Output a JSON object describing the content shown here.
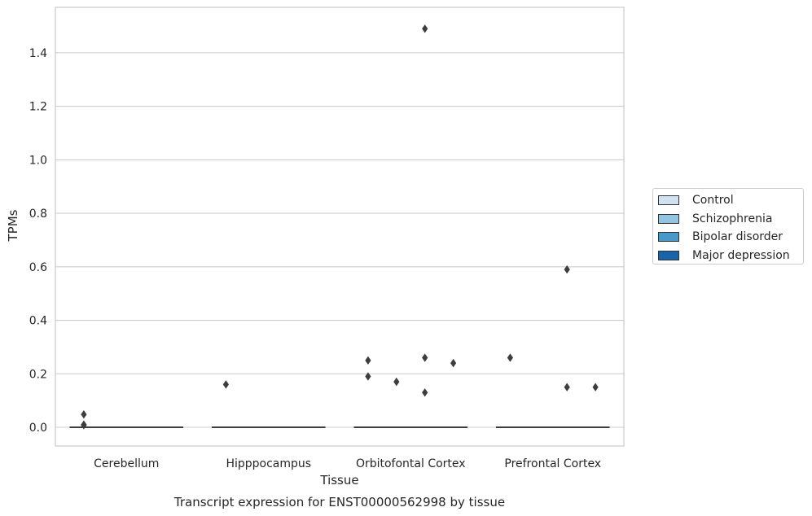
{
  "chart_data": {
    "type": "box",
    "title": "",
    "caption": "Transcript expression for ENST00000562998 by tissue",
    "xlabel": "Tissue",
    "ylabel": "TPMs",
    "ylim": [
      -0.07,
      1.57
    ],
    "yticks": [
      0.0,
      0.2,
      0.4,
      0.6,
      0.8,
      1.0,
      1.2,
      1.4
    ],
    "ytick_labels": [
      "0.0",
      "0.2",
      "0.4",
      "0.6",
      "0.8",
      "1.0",
      "1.2",
      "1.4"
    ],
    "grid": true,
    "legend_position": "right",
    "categories": [
      "Cerebellum",
      "Hipppocampus",
      "Orbitofontal Cortex",
      "Prefrontal Cortex"
    ],
    "series": [
      {
        "name": "Control",
        "color": "#d0e1f2"
      },
      {
        "name": "Schizophrenia",
        "color": "#94c4df"
      },
      {
        "name": "Bipolar disorder",
        "color": "#4a98c9"
      },
      {
        "name": "Major depression",
        "color": "#1764ab"
      }
    ],
    "medians": [
      0.0,
      0.0,
      0.0,
      0.0
    ],
    "outliers": [
      {
        "category": "Cerebellum",
        "series": "Control",
        "y": 0.008
      },
      {
        "category": "Cerebellum",
        "series": "Control",
        "y": 0.01
      },
      {
        "category": "Cerebellum",
        "series": "Control",
        "y": 0.048
      },
      {
        "category": "Hipppocampus",
        "series": "Control",
        "y": 0.16
      },
      {
        "category": "Orbitofontal Cortex",
        "series": "Control",
        "y": 0.25
      },
      {
        "category": "Orbitofontal Cortex",
        "series": "Control",
        "y": 0.19
      },
      {
        "category": "Orbitofontal Cortex",
        "series": "Schizophrenia",
        "y": 0.17
      },
      {
        "category": "Orbitofontal Cortex",
        "series": "Bipolar disorder",
        "y": 1.49
      },
      {
        "category": "Orbitofontal Cortex",
        "series": "Bipolar disorder",
        "y": 0.26
      },
      {
        "category": "Orbitofontal Cortex",
        "series": "Bipolar disorder",
        "y": 0.13
      },
      {
        "category": "Orbitofontal Cortex",
        "series": "Major depression",
        "y": 0.24
      },
      {
        "category": "Prefrontal Cortex",
        "series": "Control",
        "y": 0.26
      },
      {
        "category": "Prefrontal Cortex",
        "series": "Bipolar disorder",
        "y": 0.15
      },
      {
        "category": "Prefrontal Cortex",
        "series": "Bipolar disorder",
        "y": 0.59
      },
      {
        "category": "Prefrontal Cortex",
        "series": "Major depression",
        "y": 0.15
      }
    ]
  }
}
